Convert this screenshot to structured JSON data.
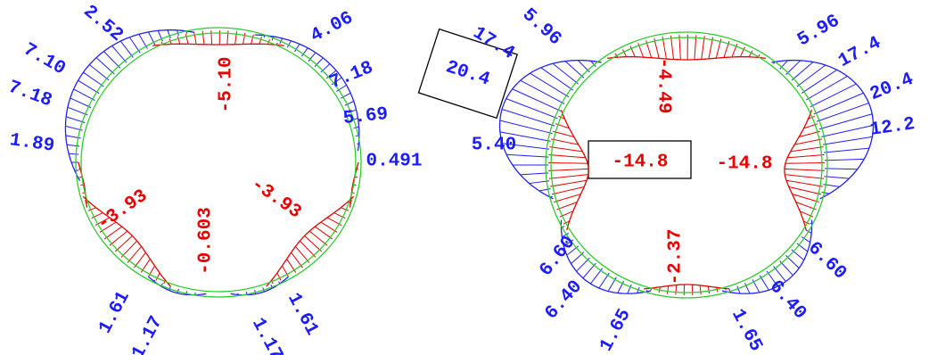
{
  "diagrams": [
    {
      "labels": [
        {
          "text": "2.52",
          "color": "#1c1cff"
        },
        {
          "text": "7.10",
          "color": "#1c1cff"
        },
        {
          "text": "7.18",
          "color": "#1c1cff"
        },
        {
          "text": "1.89",
          "color": "#1c1cff"
        },
        {
          "text": "4.06",
          "color": "#1c1cff"
        },
        {
          "text": "7.18",
          "color": "#1c1cff"
        },
        {
          "text": "5.69",
          "color": "#1c1cff"
        },
        {
          "text": "0.491",
          "color": "#1c1cff"
        },
        {
          "text": "1.61",
          "color": "#1c1cff"
        },
        {
          "text": "1.17",
          "color": "#1c1cff"
        },
        {
          "text": "1.17",
          "color": "#1c1cff"
        },
        {
          "text": "1.61",
          "color": "#1c1cff"
        },
        {
          "text": "-5.10",
          "color": "#e80000"
        },
        {
          "text": "-3.93",
          "color": "#e80000"
        },
        {
          "text": "-3.93",
          "color": "#e80000"
        },
        {
          "text": "-0.603",
          "color": "#e80000"
        }
      ]
    },
    {
      "labels": [
        {
          "text": "17.4",
          "color": "#1c1cff"
        },
        {
          "text": "5.96",
          "color": "#1c1cff"
        },
        {
          "text": "20.4",
          "color": "#1c1cff"
        },
        {
          "text": "5.40",
          "color": "#1c1cff"
        },
        {
          "text": "5.96",
          "color": "#1c1cff"
        },
        {
          "text": "17.4",
          "color": "#1c1cff"
        },
        {
          "text": "20.4",
          "color": "#1c1cff"
        },
        {
          "text": "12.2",
          "color": "#1c1cff"
        },
        {
          "text": "6.60",
          "color": "#1c1cff"
        },
        {
          "text": "6.40",
          "color": "#1c1cff"
        },
        {
          "text": "1.65",
          "color": "#1c1cff"
        },
        {
          "text": "1.65",
          "color": "#1c1cff"
        },
        {
          "text": "6.40",
          "color": "#1c1cff"
        },
        {
          "text": "6.60",
          "color": "#1c1cff"
        },
        {
          "text": "-4.49",
          "color": "#e80000"
        },
        {
          "text": "-14.8",
          "color": "#e80000"
        },
        {
          "text": "-14.8",
          "color": "#e80000"
        },
        {
          "text": "-2.37",
          "color": "#e80000"
        }
      ]
    }
  ]
}
